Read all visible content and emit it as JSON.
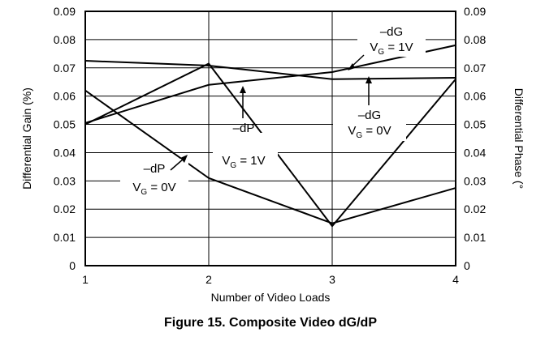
{
  "chart_data": {
    "type": "line",
    "caption": "Figure 15. Composite Video dG/dP",
    "xlabel": "Number of Video Loads",
    "ylabel_left": "Differential Gain (%)",
    "ylabel_right": "Differential Phase (°",
    "x": [
      1,
      2,
      3,
      4
    ],
    "x_ticks": [
      "1",
      "2",
      "3",
      "4"
    ],
    "y_left_ticks": [
      "0",
      "0.01",
      "0.02",
      "0.03",
      "0.04",
      "0.05",
      "0.06",
      "0.07",
      "0.08",
      "0.09"
    ],
    "y_right_ticks": [
      "0",
      "0.01",
      "0.02",
      "0.03",
      "0.04",
      "0.05",
      "0.06",
      "0.07",
      "0.08",
      "0.09"
    ],
    "ylim": [
      0,
      0.09
    ],
    "xlim": [
      1,
      4
    ],
    "grid": true,
    "series": [
      {
        "name": "–dG V_G = 1V",
        "values": [
          0.0505,
          0.064,
          0.0685,
          0.078
        ]
      },
      {
        "name": "–dG V_G = 0V",
        "values": [
          0.0725,
          0.0708,
          0.066,
          0.0665
        ]
      },
      {
        "name": "–dP V_G = 1V",
        "values": [
          0.05,
          0.0715,
          0.014,
          0.066
        ]
      },
      {
        "name": "–dP V_G = 0V",
        "values": [
          0.062,
          0.031,
          0.015,
          0.0275
        ]
      }
    ],
    "annotations": [
      {
        "line1": "–dG",
        "line2_main": "V",
        "line2_sub": "G",
        "line2_rest": " = 1V",
        "series": 0
      },
      {
        "line1": "–dG",
        "line2_main": "V",
        "line2_sub": "G",
        "line2_rest": " = 0V",
        "series": 1
      },
      {
        "line1": "–dP",
        "line2_main": "V",
        "line2_sub": "G",
        "line2_rest": " = 1V",
        "series": 2
      },
      {
        "line1": "–dP",
        "line2_main": "V",
        "line2_sub": "G",
        "line2_rest": " = 0V",
        "series": 3
      }
    ]
  }
}
